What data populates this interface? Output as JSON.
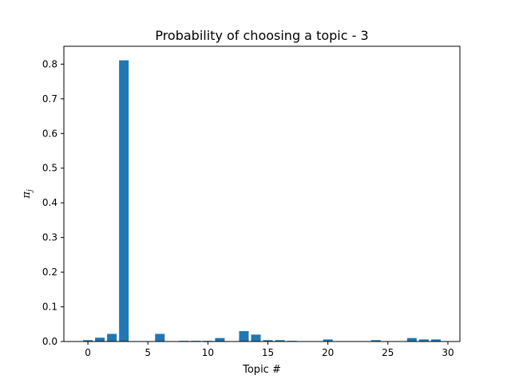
{
  "chart_data": {
    "type": "bar",
    "title": "Probability of choosing a topic - 3",
    "xlabel": "Topic #",
    "ylabel_main": "π",
    "ylabel_sub": "j",
    "x": [
      0,
      1,
      2,
      3,
      4,
      5,
      6,
      7,
      8,
      9,
      10,
      11,
      12,
      13,
      14,
      15,
      16,
      17,
      18,
      19,
      20,
      21,
      22,
      23,
      24,
      25,
      26,
      27,
      28,
      29
    ],
    "values": [
      0.004,
      0.011,
      0.022,
      0.811,
      0.0,
      0.0,
      0.022,
      0.0,
      0.002,
      0.002,
      0.002,
      0.01,
      0.0,
      0.03,
      0.02,
      0.004,
      0.004,
      0.002,
      0.0,
      0.0,
      0.006,
      0.0,
      0.0,
      0.0,
      0.004,
      0.0,
      0.0,
      0.01,
      0.006,
      0.006
    ],
    "xlim": [
      -2,
      31
    ],
    "ylim": [
      0,
      0.8515
    ],
    "xticks": [
      0,
      5,
      10,
      15,
      20,
      25,
      30
    ],
    "xtick_labels": [
      "0",
      "5",
      "10",
      "15",
      "20",
      "25",
      "30"
    ],
    "yticks": [
      0.0,
      0.1,
      0.2,
      0.3,
      0.4,
      0.5,
      0.6,
      0.7,
      0.8
    ],
    "ytick_labels": [
      "0.0",
      "0.1",
      "0.2",
      "0.3",
      "0.4",
      "0.5",
      "0.6",
      "0.7",
      "0.8"
    ],
    "bar_color": "#1f77b4",
    "grid": false,
    "legend": "none"
  }
}
